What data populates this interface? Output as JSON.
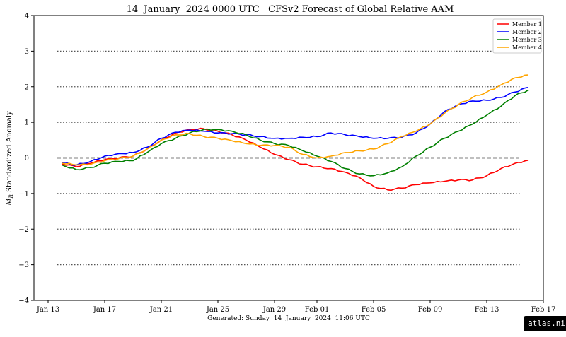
{
  "chart_data": {
    "type": "line",
    "title": "14  January  2024 0000 UTC   CFSv2 Forecast of Global Relative AAM",
    "ylabel": "M_R Standardized Anomaly",
    "xlabel": "",
    "footer": "Generated: Sunday  14  January  2024  11:06 UTC",
    "ylim": [
      -4,
      4
    ],
    "yticks": [
      {
        "value": 4,
        "label": "4"
      },
      {
        "value": 3,
        "label": "3"
      },
      {
        "value": 2,
        "label": "2"
      },
      {
        "value": 1,
        "label": "1"
      },
      {
        "value": 0,
        "label": "0"
      },
      {
        "value": -1,
        "label": "−1"
      },
      {
        "value": -2,
        "label": "−2"
      },
      {
        "value": -3,
        "label": "−3"
      },
      {
        "value": -4,
        "label": "−4"
      }
    ],
    "xlim": [
      "2024-01-12",
      "2024-02-17"
    ],
    "xticks": [
      {
        "date": "2024-01-13",
        "label": "Jan 13"
      },
      {
        "date": "2024-01-17",
        "label": "Jan 17"
      },
      {
        "date": "2024-01-21",
        "label": "Jan 21"
      },
      {
        "date": "2024-01-25",
        "label": "Jan 25"
      },
      {
        "date": "2024-01-29",
        "label": "Jan 29"
      },
      {
        "date": "2024-02-01",
        "label": "Feb 01"
      },
      {
        "date": "2024-02-05",
        "label": "Feb 05"
      },
      {
        "date": "2024-02-09",
        "label": "Feb 09"
      },
      {
        "date": "2024-02-13",
        "label": "Feb 13"
      },
      {
        "date": "2024-02-17",
        "label": "Feb 17"
      }
    ],
    "grid": "dotted horizontal at ±1, ±2, ±3",
    "zero_line": "dashed black",
    "legend_position": "top-right",
    "series": [
      {
        "name": "Member 1",
        "color": "#ff0000",
        "points": [
          [
            "2024-01-14",
            -0.17
          ],
          [
            "2024-01-15",
            -0.25
          ],
          [
            "2024-01-16",
            -0.15
          ],
          [
            "2024-01-17",
            -0.05
          ],
          [
            "2024-01-18",
            0.0
          ],
          [
            "2024-01-19",
            0.05
          ],
          [
            "2024-01-20",
            0.25
          ],
          [
            "2024-01-21",
            0.5
          ],
          [
            "2024-01-22",
            0.7
          ],
          [
            "2024-01-23",
            0.8
          ],
          [
            "2024-01-24",
            0.82
          ],
          [
            "2024-01-25",
            0.75
          ],
          [
            "2024-01-26",
            0.65
          ],
          [
            "2024-01-27",
            0.5
          ],
          [
            "2024-01-28",
            0.3
          ],
          [
            "2024-01-29",
            0.1
          ],
          [
            "2024-01-30",
            -0.05
          ],
          [
            "2024-01-31",
            -0.18
          ],
          [
            "2024-02-01",
            -0.25
          ],
          [
            "2024-02-02",
            -0.3
          ],
          [
            "2024-02-03",
            -0.4
          ],
          [
            "2024-02-04",
            -0.55
          ],
          [
            "2024-02-05",
            -0.8
          ],
          [
            "2024-02-06",
            -0.9
          ],
          [
            "2024-02-07",
            -0.85
          ],
          [
            "2024-02-08",
            -0.75
          ],
          [
            "2024-02-09",
            -0.7
          ],
          [
            "2024-02-10",
            -0.66
          ],
          [
            "2024-02-11",
            -0.62
          ],
          [
            "2024-02-12",
            -0.62
          ],
          [
            "2024-02-13",
            -0.5
          ],
          [
            "2024-02-14",
            -0.3
          ],
          [
            "2024-02-15",
            -0.15
          ],
          [
            "2024-02-15.9",
            -0.07
          ]
        ]
      },
      {
        "name": "Member 2",
        "color": "#0000ff",
        "points": [
          [
            "2024-01-14",
            -0.13
          ],
          [
            "2024-01-15",
            -0.2
          ],
          [
            "2024-01-16",
            -0.1
          ],
          [
            "2024-01-17",
            0.05
          ],
          [
            "2024-01-18",
            0.12
          ],
          [
            "2024-01-19",
            0.15
          ],
          [
            "2024-01-20",
            0.3
          ],
          [
            "2024-01-21",
            0.55
          ],
          [
            "2024-01-22",
            0.72
          ],
          [
            "2024-01-23",
            0.78
          ],
          [
            "2024-01-24",
            0.75
          ],
          [
            "2024-01-25",
            0.7
          ],
          [
            "2024-01-26",
            0.68
          ],
          [
            "2024-01-27",
            0.65
          ],
          [
            "2024-01-28",
            0.6
          ],
          [
            "2024-01-29",
            0.55
          ],
          [
            "2024-01-30",
            0.55
          ],
          [
            "2024-01-31",
            0.58
          ],
          [
            "2024-02-01",
            0.6
          ],
          [
            "2024-02-02",
            0.7
          ],
          [
            "2024-02-03",
            0.65
          ],
          [
            "2024-02-04",
            0.6
          ],
          [
            "2024-02-05",
            0.55
          ],
          [
            "2024-02-06",
            0.55
          ],
          [
            "2024-02-07",
            0.58
          ],
          [
            "2024-02-08",
            0.7
          ],
          [
            "2024-02-09",
            0.95
          ],
          [
            "2024-02-10",
            1.3
          ],
          [
            "2024-02-11",
            1.5
          ],
          [
            "2024-02-12",
            1.6
          ],
          [
            "2024-02-13",
            1.62
          ],
          [
            "2024-02-14",
            1.7
          ],
          [
            "2024-02-15",
            1.85
          ],
          [
            "2024-02-15.9",
            1.98
          ]
        ]
      },
      {
        "name": "Member 3",
        "color": "#008000",
        "points": [
          [
            "2024-01-14",
            -0.2
          ],
          [
            "2024-01-15",
            -0.33
          ],
          [
            "2024-01-16",
            -0.27
          ],
          [
            "2024-01-17",
            -0.15
          ],
          [
            "2024-01-18",
            -0.1
          ],
          [
            "2024-01-19",
            -0.08
          ],
          [
            "2024-01-20",
            0.15
          ],
          [
            "2024-01-21",
            0.4
          ],
          [
            "2024-01-22",
            0.55
          ],
          [
            "2024-01-23",
            0.7
          ],
          [
            "2024-01-24",
            0.8
          ],
          [
            "2024-01-25",
            0.8
          ],
          [
            "2024-01-26",
            0.75
          ],
          [
            "2024-01-27",
            0.65
          ],
          [
            "2024-01-28",
            0.5
          ],
          [
            "2024-01-29",
            0.4
          ],
          [
            "2024-01-30",
            0.35
          ],
          [
            "2024-01-31",
            0.2
          ],
          [
            "2024-02-01",
            0.05
          ],
          [
            "2024-02-02",
            -0.1
          ],
          [
            "2024-02-03",
            -0.3
          ],
          [
            "2024-02-04",
            -0.45
          ],
          [
            "2024-02-05",
            -0.5
          ],
          [
            "2024-02-06",
            -0.42
          ],
          [
            "2024-02-07",
            -0.25
          ],
          [
            "2024-02-08",
            0.05
          ],
          [
            "2024-02-09",
            0.3
          ],
          [
            "2024-02-10",
            0.55
          ],
          [
            "2024-02-11",
            0.75
          ],
          [
            "2024-02-12",
            0.95
          ],
          [
            "2024-02-13",
            1.2
          ],
          [
            "2024-02-14",
            1.45
          ],
          [
            "2024-02-15",
            1.75
          ],
          [
            "2024-02-15.9",
            1.9
          ]
        ]
      },
      {
        "name": "Member 4",
        "color": "#ffa500",
        "points": [
          [
            "2024-01-14",
            -0.15
          ],
          [
            "2024-01-15",
            -0.2
          ],
          [
            "2024-01-16",
            -0.18
          ],
          [
            "2024-01-17",
            -0.08
          ],
          [
            "2024-01-18",
            -0.02
          ],
          [
            "2024-01-19",
            0.05
          ],
          [
            "2024-01-20",
            0.25
          ],
          [
            "2024-01-21",
            0.5
          ],
          [
            "2024-01-22",
            0.65
          ],
          [
            "2024-01-23",
            0.68
          ],
          [
            "2024-01-24",
            0.6
          ],
          [
            "2024-01-25",
            0.55
          ],
          [
            "2024-01-26",
            0.48
          ],
          [
            "2024-01-27",
            0.4
          ],
          [
            "2024-01-28",
            0.35
          ],
          [
            "2024-01-29",
            0.35
          ],
          [
            "2024-01-30",
            0.3
          ],
          [
            "2024-01-31",
            0.1
          ],
          [
            "2024-02-01",
            0.0
          ],
          [
            "2024-02-02",
            0.05
          ],
          [
            "2024-02-03",
            0.15
          ],
          [
            "2024-02-04",
            0.2
          ],
          [
            "2024-02-05",
            0.25
          ],
          [
            "2024-02-06",
            0.4
          ],
          [
            "2024-02-07",
            0.6
          ],
          [
            "2024-02-08",
            0.75
          ],
          [
            "2024-02-09",
            0.95
          ],
          [
            "2024-02-10",
            1.25
          ],
          [
            "2024-02-11",
            1.5
          ],
          [
            "2024-02-12",
            1.7
          ],
          [
            "2024-02-13",
            1.85
          ],
          [
            "2024-02-14",
            2.05
          ],
          [
            "2024-02-15",
            2.25
          ],
          [
            "2024-02-15.9",
            2.33
          ]
        ]
      }
    ]
  },
  "watermark": "atlas.niu.edu"
}
